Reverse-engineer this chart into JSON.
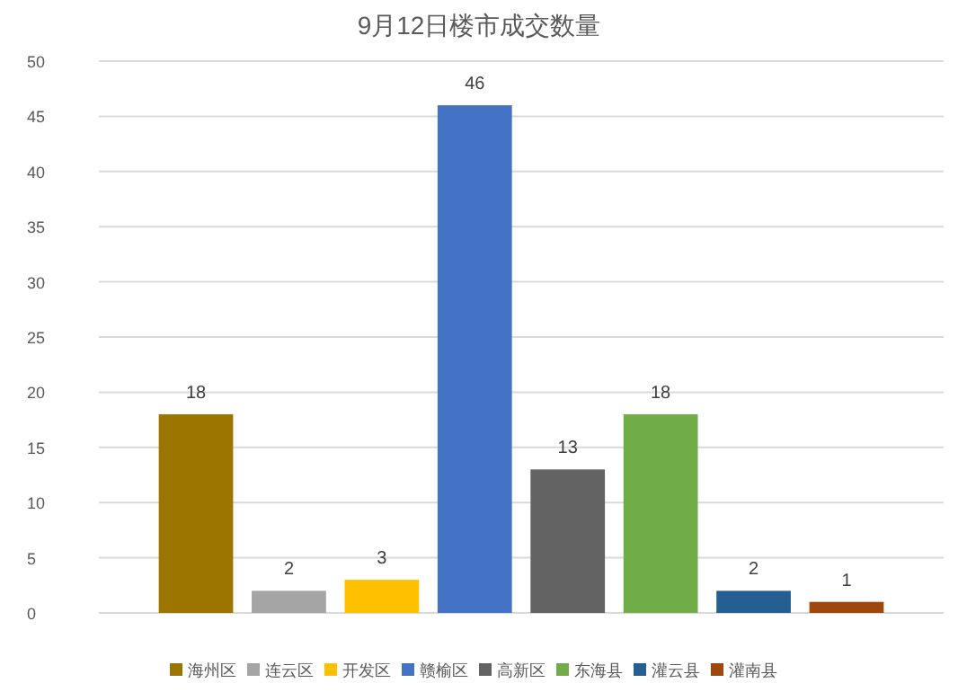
{
  "chart_data": {
    "type": "bar",
    "title": "9月12日楼市成交数量",
    "categories": [
      null
    ],
    "series": [
      {
        "name": "海州区",
        "color": "#9c7500",
        "values": [
          18
        ]
      },
      {
        "name": "连云区",
        "color": "#a5a5a5",
        "values": [
          2
        ]
      },
      {
        "name": "开发区",
        "color": "#ffc000",
        "values": [
          3
        ]
      },
      {
        "name": "赣榆区",
        "color": "#4472c4",
        "values": [
          46
        ]
      },
      {
        "name": "高新区",
        "color": "#636363",
        "values": [
          13
        ]
      },
      {
        "name": "东海县",
        "color": "#70ad47",
        "values": [
          18
        ]
      },
      {
        "name": "灌云县",
        "color": "#255e91",
        "values": [
          2
        ]
      },
      {
        "name": "灌南县",
        "color": "#9e480e",
        "values": [
          1
        ]
      }
    ],
    "ylim": [
      0,
      50
    ],
    "yticks": [
      0,
      5,
      10,
      15,
      20,
      25,
      30,
      35,
      40,
      45,
      50
    ],
    "grid": "y",
    "data_labels": true,
    "legend": "bottom",
    "tick_labels": "y"
  }
}
